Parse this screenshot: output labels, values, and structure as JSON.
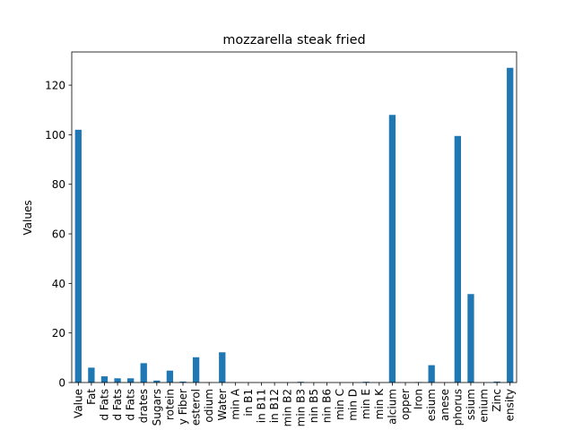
{
  "chart_data": {
    "type": "bar",
    "title": "mozzarella steak fried",
    "xlabel": "",
    "ylabel": "Values",
    "ylim": [
      0,
      133.4
    ],
    "yticks": [
      0,
      20,
      40,
      60,
      80,
      100,
      120
    ],
    "grid": false,
    "legend": "none",
    "bar_color": "#1f77b4",
    "categories": [
      "Value",
      "Fat",
      "d Fats",
      "d Fats",
      "d Fats",
      "drates",
      "Sugars",
      "rotein",
      "y Fiber",
      "esterol",
      "odium",
      "Water",
      "min A",
      "in B1",
      "in B11",
      "in B12",
      "min B2",
      "min B3",
      "nin B5",
      "nin B6",
      "min C",
      "min D",
      "min E",
      "min K",
      "alcium",
      "opper",
      "Iron",
      "esium",
      "anese",
      "phorus",
      "ssium",
      "enium",
      "Zinc",
      "ensity"
    ],
    "values": [
      102,
      6,
      2.5,
      1.7,
      1.7,
      7.8,
      0.8,
      4.8,
      0.4,
      10.2,
      0.1,
      12.2,
      0.05,
      0,
      0,
      0,
      0,
      0.3,
      0,
      0,
      0,
      0,
      0.3,
      0,
      108,
      0,
      0.2,
      7,
      0,
      99.5,
      35.7,
      0,
      0.4,
      127
    ]
  }
}
